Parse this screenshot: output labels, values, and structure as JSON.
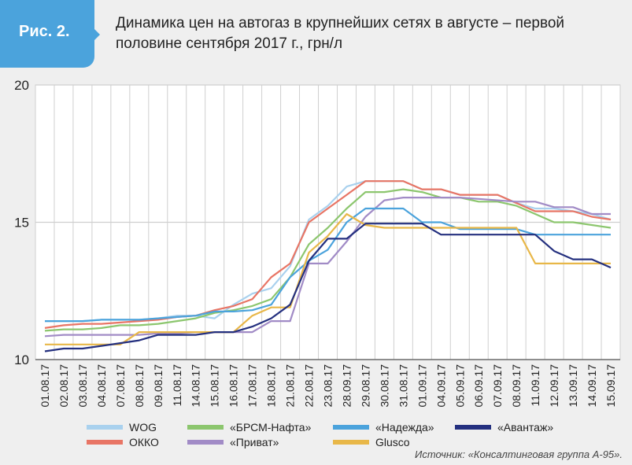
{
  "header": {
    "figure_label": "Рис. 2.",
    "title": "Динамика цен на автогаз в крупнейших сетях в августе – первой половине сентября 2017 г., грн/л"
  },
  "colors": {
    "badge": "#4ba3dc",
    "grid": "#cfcfcf",
    "axis": "#555555"
  },
  "source": "Источник: «Консалтинговая группа А-95».",
  "chart_data": {
    "type": "line",
    "title": "Динамика цен на автогаз в крупнейших сетях в августе – первой половине сентября 2017 г., грн/л",
    "xlabel": "",
    "ylabel": "",
    "ylim": [
      10,
      20
    ],
    "yticks": [
      "20",
      "15",
      "10"
    ],
    "grid": true,
    "legend_position": "bottom",
    "categories": [
      "01.08.17",
      "02.08.17",
      "03.08.17",
      "04.08.17",
      "07.08.17",
      "08.08.17",
      "09.08.17",
      "11.08.17",
      "14.08.17",
      "15.08.17",
      "16.08.17",
      "17.08.17",
      "18.08.17",
      "21.08.17",
      "22.08.17",
      "23.08.17",
      "28.09.17",
      "29.08.17",
      "30.08.17",
      "31.08.17",
      "01.09.17",
      "04.09.17",
      "05.09.17",
      "06.09.17",
      "07.09.17",
      "08.09.17",
      "11.09.17",
      "12.09.17",
      "13.09.17",
      "14.09.17",
      "15.09.17"
    ],
    "series": [
      {
        "name": "WOG",
        "color": "#a9d1ee",
        "values": [
          11.4,
          11.4,
          11.4,
          11.45,
          11.45,
          11.45,
          11.5,
          11.6,
          11.6,
          11.5,
          12.0,
          12.4,
          12.6,
          13.4,
          15.1,
          15.6,
          16.3,
          16.5,
          16.5,
          16.5,
          16.2,
          16.2,
          16.0,
          16.0,
          16.0,
          15.7,
          15.5,
          15.5,
          15.4,
          15.3,
          15.1
        ]
      },
      {
        "name": "ОККО",
        "color": "#e87565",
        "values": [
          11.15,
          11.25,
          11.3,
          11.3,
          11.35,
          11.4,
          11.45,
          11.55,
          11.6,
          11.8,
          11.95,
          12.2,
          13.0,
          13.5,
          15.0,
          15.5,
          16.0,
          16.5,
          16.5,
          16.5,
          16.2,
          16.2,
          16.0,
          16.0,
          16.0,
          15.7,
          15.4,
          15.4,
          15.4,
          15.2,
          15.1
        ]
      },
      {
        "name": "«БРСМ-Нафта»",
        "color": "#8cc66e",
        "values": [
          11.05,
          11.1,
          11.1,
          11.15,
          11.25,
          11.25,
          11.3,
          11.4,
          11.5,
          11.7,
          11.8,
          11.95,
          12.2,
          13.0,
          14.2,
          14.8,
          15.5,
          16.1,
          16.1,
          16.2,
          16.1,
          15.9,
          15.9,
          15.75,
          15.75,
          15.6,
          15.3,
          15.0,
          15.0,
          14.9,
          14.8
        ]
      },
      {
        "name": "«Приват»",
        "color": "#a18bc6",
        "values": [
          10.85,
          10.9,
          10.9,
          10.9,
          10.9,
          10.9,
          10.95,
          10.95,
          11.0,
          11.0,
          11.0,
          11.0,
          11.4,
          11.4,
          13.5,
          13.5,
          14.3,
          15.2,
          15.8,
          15.9,
          15.9,
          15.9,
          15.9,
          15.85,
          15.8,
          15.75,
          15.75,
          15.55,
          15.55,
          15.3,
          15.3
        ]
      },
      {
        "name": "«Надежда»",
        "color": "#4ba3dc",
        "values": [
          11.4,
          11.4,
          11.4,
          11.45,
          11.45,
          11.45,
          11.5,
          11.55,
          11.6,
          11.75,
          11.75,
          11.8,
          12.0,
          13.0,
          13.6,
          14.0,
          15.0,
          15.5,
          15.5,
          15.5,
          15.0,
          15.0,
          14.75,
          14.75,
          14.75,
          14.75,
          14.55,
          14.55,
          14.55,
          14.55,
          14.55
        ]
      },
      {
        "name": "Glusco",
        "color": "#e8b748",
        "values": [
          10.55,
          10.55,
          10.55,
          10.55,
          10.55,
          11.0,
          11.0,
          11.0,
          11.0,
          11.0,
          11.0,
          11.6,
          11.9,
          11.9,
          13.9,
          14.5,
          15.3,
          14.9,
          14.8,
          14.8,
          14.8,
          14.8,
          14.8,
          14.8,
          14.8,
          14.8,
          13.5,
          13.5,
          13.5,
          13.5,
          13.5
        ]
      },
      {
        "name": "«Авантаж»",
        "color": "#24307f",
        "values": [
          10.3,
          10.4,
          10.4,
          10.5,
          10.6,
          10.7,
          10.9,
          10.9,
          10.9,
          11.0,
          11.0,
          11.2,
          11.5,
          12.0,
          13.6,
          14.4,
          14.4,
          14.95,
          14.95,
          14.95,
          14.95,
          14.55,
          14.55,
          14.55,
          14.55,
          14.55,
          14.55,
          13.95,
          13.65,
          13.65,
          13.35
        ]
      }
    ]
  }
}
